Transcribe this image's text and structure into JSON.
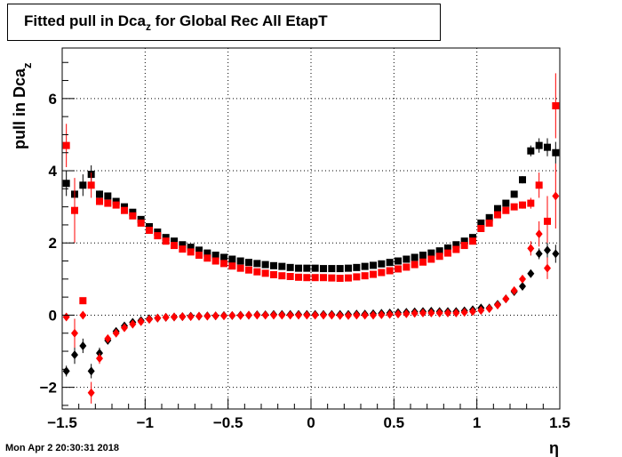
{
  "title": {
    "main": "Fitted pull in Dca",
    "sub": "z",
    "rest": " for Global Rec All EtapT"
  },
  "timestamp": "Mon Apr  2 20:30:31 2018",
  "chart_data": {
    "type": "scatter",
    "xlabel": "η",
    "ylabel_main": "pull in Dca",
    "ylabel_sub": "z",
    "xlim": [
      -1.5,
      1.5
    ],
    "ylim": [
      -2.6,
      7.4
    ],
    "xticks": [
      -1.5,
      -1,
      -0.5,
      0,
      0.5,
      1,
      1.5
    ],
    "xtick_labels": [
      "−1.5",
      "−1",
      "−0.5",
      "0",
      "0.5",
      "1",
      "1.5"
    ],
    "yticks": [
      -2,
      0,
      2,
      4,
      6
    ],
    "ytick_labels": [
      "−2",
      "0",
      "2",
      "4",
      "6"
    ],
    "grid": true,
    "x": [
      -1.475,
      -1.425,
      -1.375,
      -1.325,
      -1.275,
      -1.225,
      -1.175,
      -1.125,
      -1.075,
      -1.025,
      -0.975,
      -0.925,
      -0.875,
      -0.825,
      -0.775,
      -0.725,
      -0.675,
      -0.625,
      -0.575,
      -0.525,
      -0.475,
      -0.425,
      -0.375,
      -0.325,
      -0.275,
      -0.225,
      -0.175,
      -0.125,
      -0.075,
      -0.025,
      0.025,
      0.075,
      0.125,
      0.175,
      0.225,
      0.275,
      0.325,
      0.375,
      0.425,
      0.475,
      0.525,
      0.575,
      0.625,
      0.675,
      0.725,
      0.775,
      0.825,
      0.875,
      0.925,
      0.975,
      1.025,
      1.075,
      1.125,
      1.175,
      1.225,
      1.275,
      1.325,
      1.375,
      1.425,
      1.475
    ],
    "series": [
      {
        "marker": "square",
        "color": "#000000",
        "values": [
          3.65,
          3.35,
          3.6,
          3.9,
          3.35,
          3.3,
          3.15,
          3.0,
          2.85,
          2.65,
          2.45,
          2.3,
          2.15,
          2.05,
          1.95,
          1.88,
          1.8,
          1.72,
          1.66,
          1.6,
          1.55,
          1.5,
          1.46,
          1.43,
          1.4,
          1.37,
          1.35,
          1.32,
          1.3,
          1.3,
          1.3,
          1.29,
          1.29,
          1.29,
          1.3,
          1.32,
          1.35,
          1.38,
          1.42,
          1.46,
          1.5,
          1.55,
          1.6,
          1.66,
          1.72,
          1.78,
          1.86,
          1.95,
          2.05,
          2.15,
          2.55,
          2.7,
          2.95,
          3.1,
          3.35,
          3.75,
          4.55,
          4.7,
          4.65,
          4.5
        ],
        "err": [
          0.35,
          0.3,
          0.3,
          0.25,
          0.1,
          0.05,
          0.05,
          0.05,
          0.05,
          0.05,
          0.05,
          0.05,
          0.05,
          0.05,
          0.05,
          0.05,
          0.05,
          0.05,
          0.05,
          0.05,
          0.05,
          0.05,
          0.05,
          0.05,
          0.05,
          0.05,
          0.05,
          0.05,
          0.05,
          0.05,
          0.05,
          0.05,
          0.05,
          0.05,
          0.05,
          0.05,
          0.05,
          0.05,
          0.05,
          0.05,
          0.05,
          0.05,
          0.05,
          0.05,
          0.05,
          0.05,
          0.05,
          0.05,
          0.05,
          0.05,
          0.05,
          0.05,
          0.05,
          0.05,
          0.05,
          0.1,
          0.15,
          0.2,
          0.25,
          0.3
        ]
      },
      {
        "marker": "square",
        "color": "#ff0000",
        "values": [
          4.7,
          2.9,
          0.4,
          3.6,
          3.15,
          3.1,
          3.05,
          2.9,
          2.75,
          2.55,
          2.35,
          2.2,
          2.05,
          1.93,
          1.83,
          1.75,
          1.66,
          1.58,
          1.5,
          1.43,
          1.36,
          1.3,
          1.25,
          1.2,
          1.16,
          1.12,
          1.09,
          1.07,
          1.05,
          1.04,
          1.04,
          1.04,
          1.03,
          1.02,
          1.03,
          1.06,
          1.09,
          1.13,
          1.18,
          1.23,
          1.28,
          1.33,
          1.4,
          1.47,
          1.55,
          1.63,
          1.72,
          1.82,
          1.93,
          2.05,
          2.4,
          2.55,
          2.78,
          2.9,
          3.0,
          3.05,
          3.1,
          3.6,
          2.6,
          5.8
        ],
        "err": [
          0.6,
          0.9,
          0.05,
          0.35,
          0.1,
          0.05,
          0.05,
          0.05,
          0.05,
          0.05,
          0.05,
          0.05,
          0.05,
          0.05,
          0.05,
          0.05,
          0.05,
          0.05,
          0.05,
          0.05,
          0.05,
          0.05,
          0.05,
          0.05,
          0.05,
          0.05,
          0.05,
          0.05,
          0.05,
          0.05,
          0.05,
          0.05,
          0.05,
          0.05,
          0.05,
          0.05,
          0.05,
          0.05,
          0.05,
          0.05,
          0.05,
          0.05,
          0.05,
          0.05,
          0.05,
          0.05,
          0.05,
          0.05,
          0.05,
          0.05,
          0.05,
          0.05,
          0.05,
          0.05,
          0.05,
          0.1,
          0.15,
          0.35,
          0.7,
          0.9
        ]
      },
      {
        "marker": "diamond",
        "color": "#000000",
        "values": [
          -1.55,
          -1.1,
          -0.85,
          -1.55,
          -1.05,
          -0.7,
          -0.45,
          -0.3,
          -0.2,
          -0.15,
          -0.1,
          -0.08,
          -0.06,
          -0.05,
          -0.04,
          -0.03,
          -0.03,
          -0.02,
          -0.02,
          -0.01,
          -0.01,
          0,
          0,
          0.01,
          0.01,
          0.02,
          0.02,
          0.02,
          0.02,
          0.02,
          0.02,
          0.02,
          0.02,
          0.02,
          0.02,
          0.03,
          0.03,
          0.04,
          0.05,
          0.06,
          0.07,
          0.08,
          0.09,
          0.1,
          0.11,
          0.1,
          0.1,
          0.1,
          0.12,
          0.15,
          0.2,
          0.2,
          0.3,
          0.45,
          0.65,
          0.8,
          1.15,
          1.7,
          1.8,
          1.7
        ],
        "err": [
          0.15,
          0.25,
          0.2,
          0.2,
          0.15,
          0.05,
          0.05,
          0.03,
          0.03,
          0.03,
          0.03,
          0.03,
          0.03,
          0.03,
          0.03,
          0.03,
          0.03,
          0.03,
          0.03,
          0.03,
          0.03,
          0.03,
          0.03,
          0.03,
          0.03,
          0.03,
          0.03,
          0.03,
          0.03,
          0.03,
          0.03,
          0.03,
          0.03,
          0.03,
          0.03,
          0.03,
          0.03,
          0.03,
          0.03,
          0.03,
          0.03,
          0.03,
          0.03,
          0.03,
          0.03,
          0.03,
          0.03,
          0.03,
          0.03,
          0.03,
          0.03,
          0.03,
          0.03,
          0.03,
          0.05,
          0.05,
          0.1,
          0.15,
          0.2,
          0.25
        ]
      },
      {
        "marker": "diamond",
        "color": "#ff0000",
        "values": [
          -0.05,
          -0.5,
          0.0,
          -2.15,
          -1.2,
          -0.65,
          -0.5,
          -0.35,
          -0.25,
          -0.18,
          -0.12,
          -0.08,
          -0.06,
          -0.05,
          -0.04,
          -0.04,
          -0.03,
          -0.03,
          -0.02,
          -0.02,
          -0.01,
          -0.01,
          0,
          0,
          0,
          0,
          0,
          0,
          0,
          0,
          0,
          0,
          0,
          -0.01,
          -0.01,
          0,
          0,
          0,
          0.01,
          0.02,
          0.03,
          0.04,
          0.05,
          0.06,
          0.06,
          0.06,
          0.06,
          0.06,
          0.08,
          0.1,
          0.13,
          0.18,
          0.28,
          0.45,
          0.68,
          1.0,
          1.85,
          2.25,
          1.3,
          3.3
        ],
        "err": [
          0.1,
          0.4,
          0.05,
          0.3,
          0.15,
          0.1,
          0.05,
          0.03,
          0.03,
          0.03,
          0.03,
          0.03,
          0.03,
          0.03,
          0.03,
          0.03,
          0.03,
          0.03,
          0.03,
          0.03,
          0.03,
          0.03,
          0.03,
          0.03,
          0.03,
          0.03,
          0.03,
          0.03,
          0.03,
          0.03,
          0.03,
          0.03,
          0.03,
          0.03,
          0.03,
          0.03,
          0.03,
          0.03,
          0.03,
          0.03,
          0.03,
          0.03,
          0.03,
          0.03,
          0.03,
          0.03,
          0.03,
          0.03,
          0.03,
          0.03,
          0.03,
          0.03,
          0.03,
          0.05,
          0.05,
          0.1,
          0.2,
          0.35,
          0.3,
          0.9
        ]
      }
    ]
  }
}
